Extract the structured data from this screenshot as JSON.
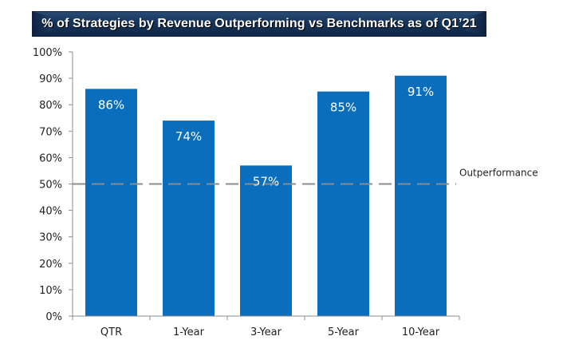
{
  "chart_data": {
    "type": "bar",
    "title": "% of Strategies by Revenue Outperforming vs Benchmarks as of Q1’21",
    "categories": [
      "QTR",
      "1-Year",
      "3-Year",
      "5-Year",
      "10-Year"
    ],
    "values": [
      86,
      74,
      57,
      85,
      91
    ],
    "data_labels": [
      "86%",
      "74%",
      "57%",
      "85%",
      "91%"
    ],
    "xlabel": "",
    "ylabel": "",
    "ylim": [
      0,
      100
    ],
    "yticks": [
      0,
      10,
      20,
      30,
      40,
      50,
      60,
      70,
      80,
      90,
      100
    ],
    "ytick_labels": [
      "0%",
      "10%",
      "20%",
      "30%",
      "40%",
      "50%",
      "60%",
      "70%",
      "80%",
      "90%",
      "100%"
    ],
    "grid": false,
    "bar_color": "#0a6ebd",
    "reference_line": {
      "value": 50,
      "label": "Outperformance",
      "style": "dashed",
      "color": "#8c8c8c"
    },
    "legend": "none"
  }
}
